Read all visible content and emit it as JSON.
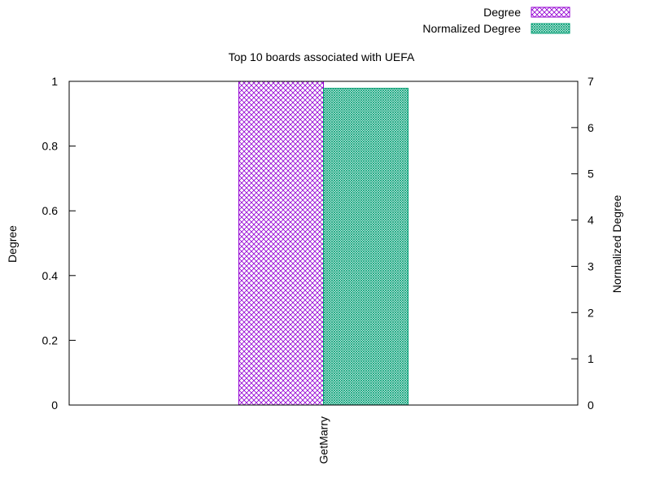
{
  "chart_data": {
    "type": "bar",
    "title": "Top 10 boards associated with UEFA",
    "categories": [
      "GetMarry"
    ],
    "series": [
      {
        "name": "Degree",
        "axis": "left",
        "values": [
          1
        ],
        "color": "#9400d3",
        "pattern": "crosshatch"
      },
      {
        "name": "Normalized Degree",
        "axis": "right",
        "values": [
          6.85
        ],
        "color": "#009e73",
        "pattern": "fine-crosshatch"
      }
    ],
    "ylabel": "Degree",
    "y2label": "Normalized Degree",
    "ylim": [
      0,
      1
    ],
    "y2lim": [
      0,
      7
    ],
    "yticks": [
      "0",
      "0.2",
      "0.4",
      "0.6",
      "0.8",
      "1"
    ],
    "y2ticks": [
      "0",
      "1",
      "2",
      "3",
      "4",
      "5",
      "6",
      "7"
    ],
    "legend_position": "top-right",
    "grid": false
  }
}
